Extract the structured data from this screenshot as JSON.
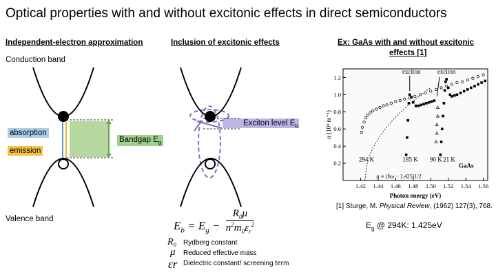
{
  "title": "Optical properties with and without excitonic effects in direct semiconductors",
  "left": {
    "header": "Independent-electron approximation",
    "conduction_band": "Conduction band",
    "valence_band": "Valence band",
    "absorption": "absorption",
    "emission": "emission",
    "bandgap_prefix": "Bandgap E",
    "bandgap_sub": "g"
  },
  "middle": {
    "header": "Inclusion of excitonic effects",
    "exciton_level_prefix": "Exciton level E",
    "exciton_level_sub": "b",
    "legend": [
      {
        "symbol": "R₀",
        "text": "Rydberg constant"
      },
      {
        "symbol": "μ",
        "text": "Reduced effective mass"
      },
      {
        "symbol": "εr",
        "text": "Dielectric constant/ screening term"
      }
    ]
  },
  "right": {
    "header_line1": "Ex: GaAs with and without excitonic",
    "header_line2": "effects [1]",
    "citation_pre": "[1] Sturge, M. ",
    "citation_journal": "Physical Review",
    "citation_post": ", (1962) 127(3), 768.",
    "eg_prefix": "E",
    "eg_sub": "g",
    "eg_rest": " @ 294K: 1.425eV"
  },
  "colors": {
    "absorption": "#a9cde8",
    "emission": "#f5c242",
    "bandgap": "#9fd08c",
    "exciton": "#7f6fc6"
  },
  "chart_data": {
    "type": "scatter",
    "xlabel": "Photon energy (eV)",
    "ylabel": "α (10⁴ m⁻¹)",
    "xlim": [
      1.4,
      1.565
    ],
    "ylim": [
      0.0,
      1.3
    ],
    "xticks": [
      "1.42",
      "1.44",
      "1.46",
      "1.48",
      "1.50",
      "1.52",
      "1.54",
      "1.56"
    ],
    "yticks": [
      "0.2",
      "0.4",
      "0.6",
      "0.8",
      "1.0",
      "1.2"
    ],
    "annotations": [
      "exciton",
      "exciton",
      "294 K",
      "185 K",
      "90 K",
      "21 K",
      "GaAs",
      "α ∝ (ħω − 1.425)1/2"
    ],
    "series": [
      {
        "name": "294 K",
        "x": [
          1.421,
          1.422,
          1.424,
          1.426,
          1.428,
          1.431,
          1.434,
          1.438,
          1.442,
          1.446,
          1.45,
          1.455,
          1.46,
          1.465,
          1.47,
          1.476,
          1.482,
          1.488,
          1.494,
          1.5,
          1.506,
          1.512,
          1.518,
          1.524,
          1.53,
          1.536,
          1.542,
          1.548,
          1.554,
          1.56
        ],
        "y": [
          0.56,
          0.62,
          0.68,
          0.73,
          0.76,
          0.79,
          0.81,
          0.83,
          0.85,
          0.87,
          0.88,
          0.9,
          0.92,
          0.93,
          0.95,
          0.96,
          0.98,
          1.0,
          1.02,
          1.04,
          1.06,
          1.08,
          1.1,
          1.12,
          1.14,
          1.15,
          1.17,
          1.19,
          1.21,
          1.23
        ]
      },
      {
        "name": "185 K",
        "x": [
          1.472,
          1.473,
          1.474,
          1.475,
          1.476,
          1.478,
          1.48,
          1.483,
          1.486,
          1.489,
          1.492,
          1.495,
          1.498,
          1.501,
          1.504
        ],
        "y": [
          0.3,
          0.5,
          0.7,
          0.9,
          1.0,
          0.97,
          0.91,
          0.87,
          0.87,
          0.88,
          0.89,
          0.9,
          0.91,
          0.92,
          0.93
        ]
      },
      {
        "name": "90 K",
        "x": [
          1.506,
          1.507,
          1.507,
          1.508,
          1.508
        ],
        "y": [
          0.45,
          0.55,
          0.65,
          0.75,
          0.85
        ]
      },
      {
        "name": "21 K",
        "x": [
          1.511,
          1.512,
          1.513,
          1.514,
          1.515,
          1.516,
          1.517,
          1.518,
          1.52,
          1.522,
          1.524,
          1.527,
          1.53,
          1.534,
          1.538,
          1.542,
          1.546,
          1.55,
          1.554,
          1.558,
          1.562
        ],
        "y": [
          0.3,
          0.45,
          0.6,
          0.75,
          0.9,
          1.05,
          1.15,
          1.18,
          1.08,
          1.0,
          0.98,
          0.99,
          1.0,
          1.02,
          1.04,
          1.06,
          1.08,
          1.1,
          1.12,
          1.14,
          1.16
        ]
      }
    ],
    "fit_curve": {
      "name": "α ∝ (ħω − 1.425)1/2",
      "x0": 1.425,
      "x_end": 1.5,
      "y_at_end": 1.08
    }
  }
}
